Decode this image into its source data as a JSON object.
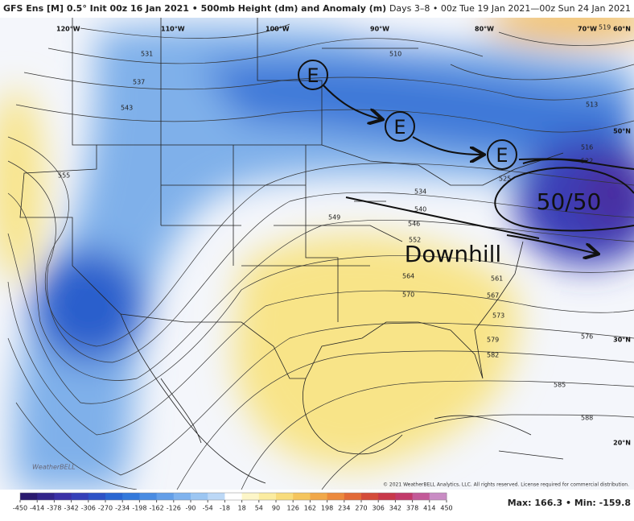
{
  "header": {
    "left": "GFS Ens [M] 0.5° Init 00z 16 Jan 2021 • 500mb Height (dm) and Anomaly (m)",
    "right": "Days 3–8 • 00z Tue 19 Jan 2021—00z Sun 24 Jan 2021"
  },
  "longitude_labels": [
    "120°W",
    "110°W",
    "100°W",
    "90°W",
    "80°W",
    "70°W"
  ],
  "latitude_labels": [
    "60°N",
    "50°N",
    "30°N",
    "20°N"
  ],
  "contour_labels": [
    "531",
    "537",
    "543",
    "555",
    "510",
    "513",
    "516",
    "519",
    "522",
    "525",
    "534",
    "540",
    "546",
    "549",
    "552",
    "561",
    "564",
    "567",
    "570",
    "573",
    "576",
    "579",
    "582",
    "585",
    "588"
  ],
  "annotations": {
    "e_marks": [
      "E",
      "E",
      "E"
    ],
    "block": "50/50",
    "pattern": "Downhill"
  },
  "logo": "WeatherBELL",
  "copyright": "© 2021 WeatherBELL Analytics, LLC. All rights reserved. License required for commercial distribution.",
  "stats": "Max: 166.3 • Min: -159.8",
  "colorbar": {
    "ticks": [
      -450,
      -414,
      -378,
      -342,
      -306,
      -270,
      -234,
      -198,
      -162,
      -126,
      -90,
      -54,
      -18,
      18,
      54,
      90,
      126,
      162,
      198,
      234,
      270,
      306,
      342,
      378,
      414,
      450
    ],
    "colors": [
      "#2b1a6e",
      "#33258a",
      "#3b31a6",
      "#3540b8",
      "#2d52c6",
      "#2a66d2",
      "#3479db",
      "#4a8ce2",
      "#649fe8",
      "#80b3ee",
      "#9cc6f2",
      "#bcd8f6",
      "#ffffff",
      "#fdf6c8",
      "#fbeca0",
      "#f8dc7c",
      "#f5c55e",
      "#f1a84a",
      "#ec8a3e",
      "#e26a38",
      "#d44c3a",
      "#c8384a",
      "#c23a6a",
      "#c35a98",
      "#c98cc4"
    ]
  }
}
